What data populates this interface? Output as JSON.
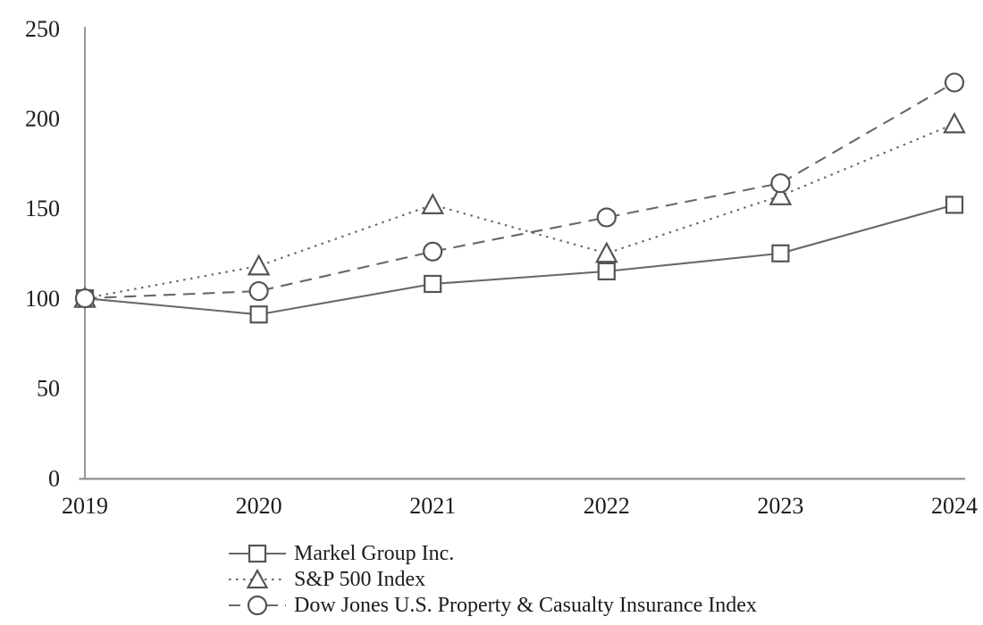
{
  "chart_data": {
    "type": "line",
    "title": "",
    "xlabel": "",
    "ylabel": "",
    "x": [
      "2019",
      "2020",
      "2021",
      "2022",
      "2023",
      "2024"
    ],
    "yticks": [
      "0",
      "50",
      "100",
      "150",
      "200",
      "250"
    ],
    "ylim": [
      0,
      250
    ],
    "grid": false,
    "legend_position": "bottom-left",
    "series": [
      {
        "name": "Markel Group Inc.",
        "marker": "square",
        "line_style": "solid",
        "values": [
          100,
          91,
          108,
          115,
          125,
          152
        ]
      },
      {
        "name": "S&P 500 Index",
        "marker": "triangle",
        "line_style": "dotted",
        "values": [
          100,
          118,
          152,
          125,
          157,
          197
        ]
      },
      {
        "name": "Dow Jones U.S. Property & Casualty Insurance Index",
        "marker": "circle",
        "line_style": "dashed",
        "values": [
          100,
          104,
          126,
          145,
          164,
          220
        ]
      }
    ],
    "colors": {
      "line": "#67686a",
      "marker_stroke": "#535456",
      "marker_fill": "#ffffff",
      "axis": "#8c8c8c",
      "text": "#1c1c1c"
    }
  }
}
